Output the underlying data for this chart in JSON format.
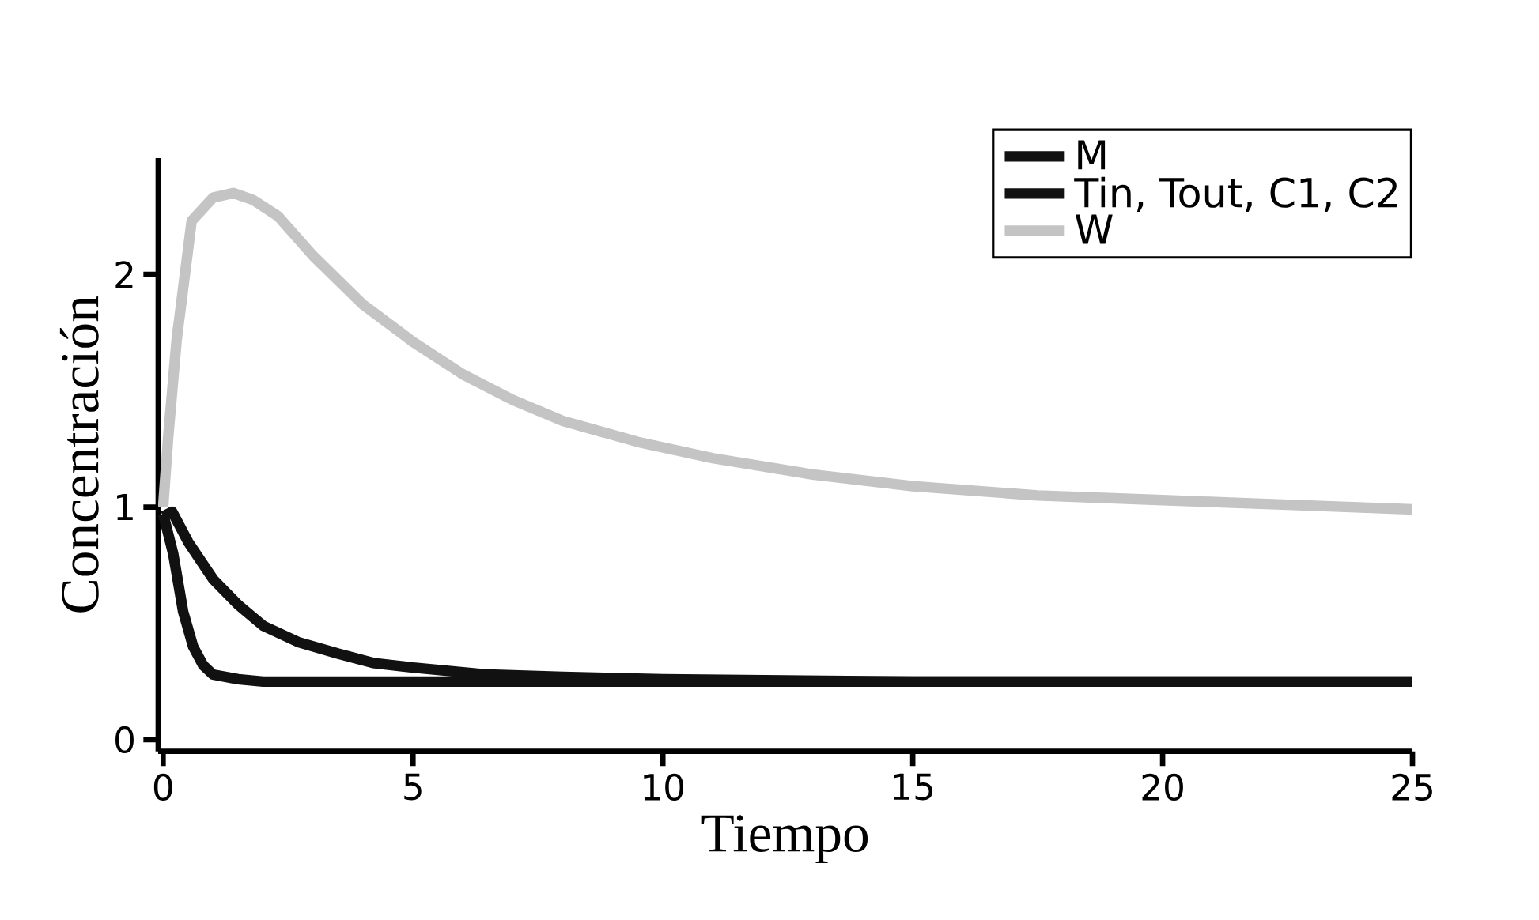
{
  "chart_data": {
    "type": "line",
    "xlabel": "Tiempo",
    "ylabel": "Concentración",
    "xlim": [
      -0.1,
      25
    ],
    "ylim": [
      -0.05,
      2.5
    ],
    "xticks": [
      0,
      5,
      10,
      15,
      20,
      25
    ],
    "yticks": [
      0,
      1,
      2
    ],
    "legend": "top right",
    "grid": false,
    "marker": "none",
    "line_style": "solid",
    "series": [
      {
        "name": "M",
        "color": "#111111",
        "x": [
          0,
          0.18,
          0.5,
          1.0,
          1.5,
          2.0,
          2.7,
          3.5,
          4.2,
          5,
          6.5,
          8,
          10,
          15,
          20,
          25
        ],
        "values": [
          0.96,
          0.98,
          0.85,
          0.69,
          0.58,
          0.49,
          0.42,
          0.37,
          0.33,
          0.31,
          0.28,
          0.27,
          0.26,
          0.25,
          0.25,
          0.25
        ]
      },
      {
        "name": "Tin, Tout, C1, C2",
        "color": "#111111",
        "x": [
          0,
          0.2,
          0.4,
          0.6,
          0.8,
          1.0,
          1.5,
          2.0,
          5,
          10,
          15,
          20,
          25
        ],
        "values": [
          0.97,
          0.8,
          0.55,
          0.4,
          0.32,
          0.28,
          0.26,
          0.25,
          0.25,
          0.25,
          0.25,
          0.25,
          0.25
        ]
      },
      {
        "name": "W",
        "color": "#c4c4c4",
        "x": [
          0,
          0.1,
          0.27,
          0.57,
          1.0,
          1.4,
          1.8,
          2.3,
          3.0,
          4.0,
          5.0,
          6.0,
          7.0,
          8.0,
          9.5,
          11.0,
          13.0,
          15.0,
          17.5,
          20.0,
          22.5,
          25.0
        ],
        "values": [
          1.0,
          1.3,
          1.72,
          2.23,
          2.33,
          2.35,
          2.32,
          2.25,
          2.08,
          1.87,
          1.71,
          1.57,
          1.46,
          1.37,
          1.28,
          1.21,
          1.14,
          1.09,
          1.05,
          1.03,
          1.01,
          0.99
        ]
      }
    ]
  }
}
